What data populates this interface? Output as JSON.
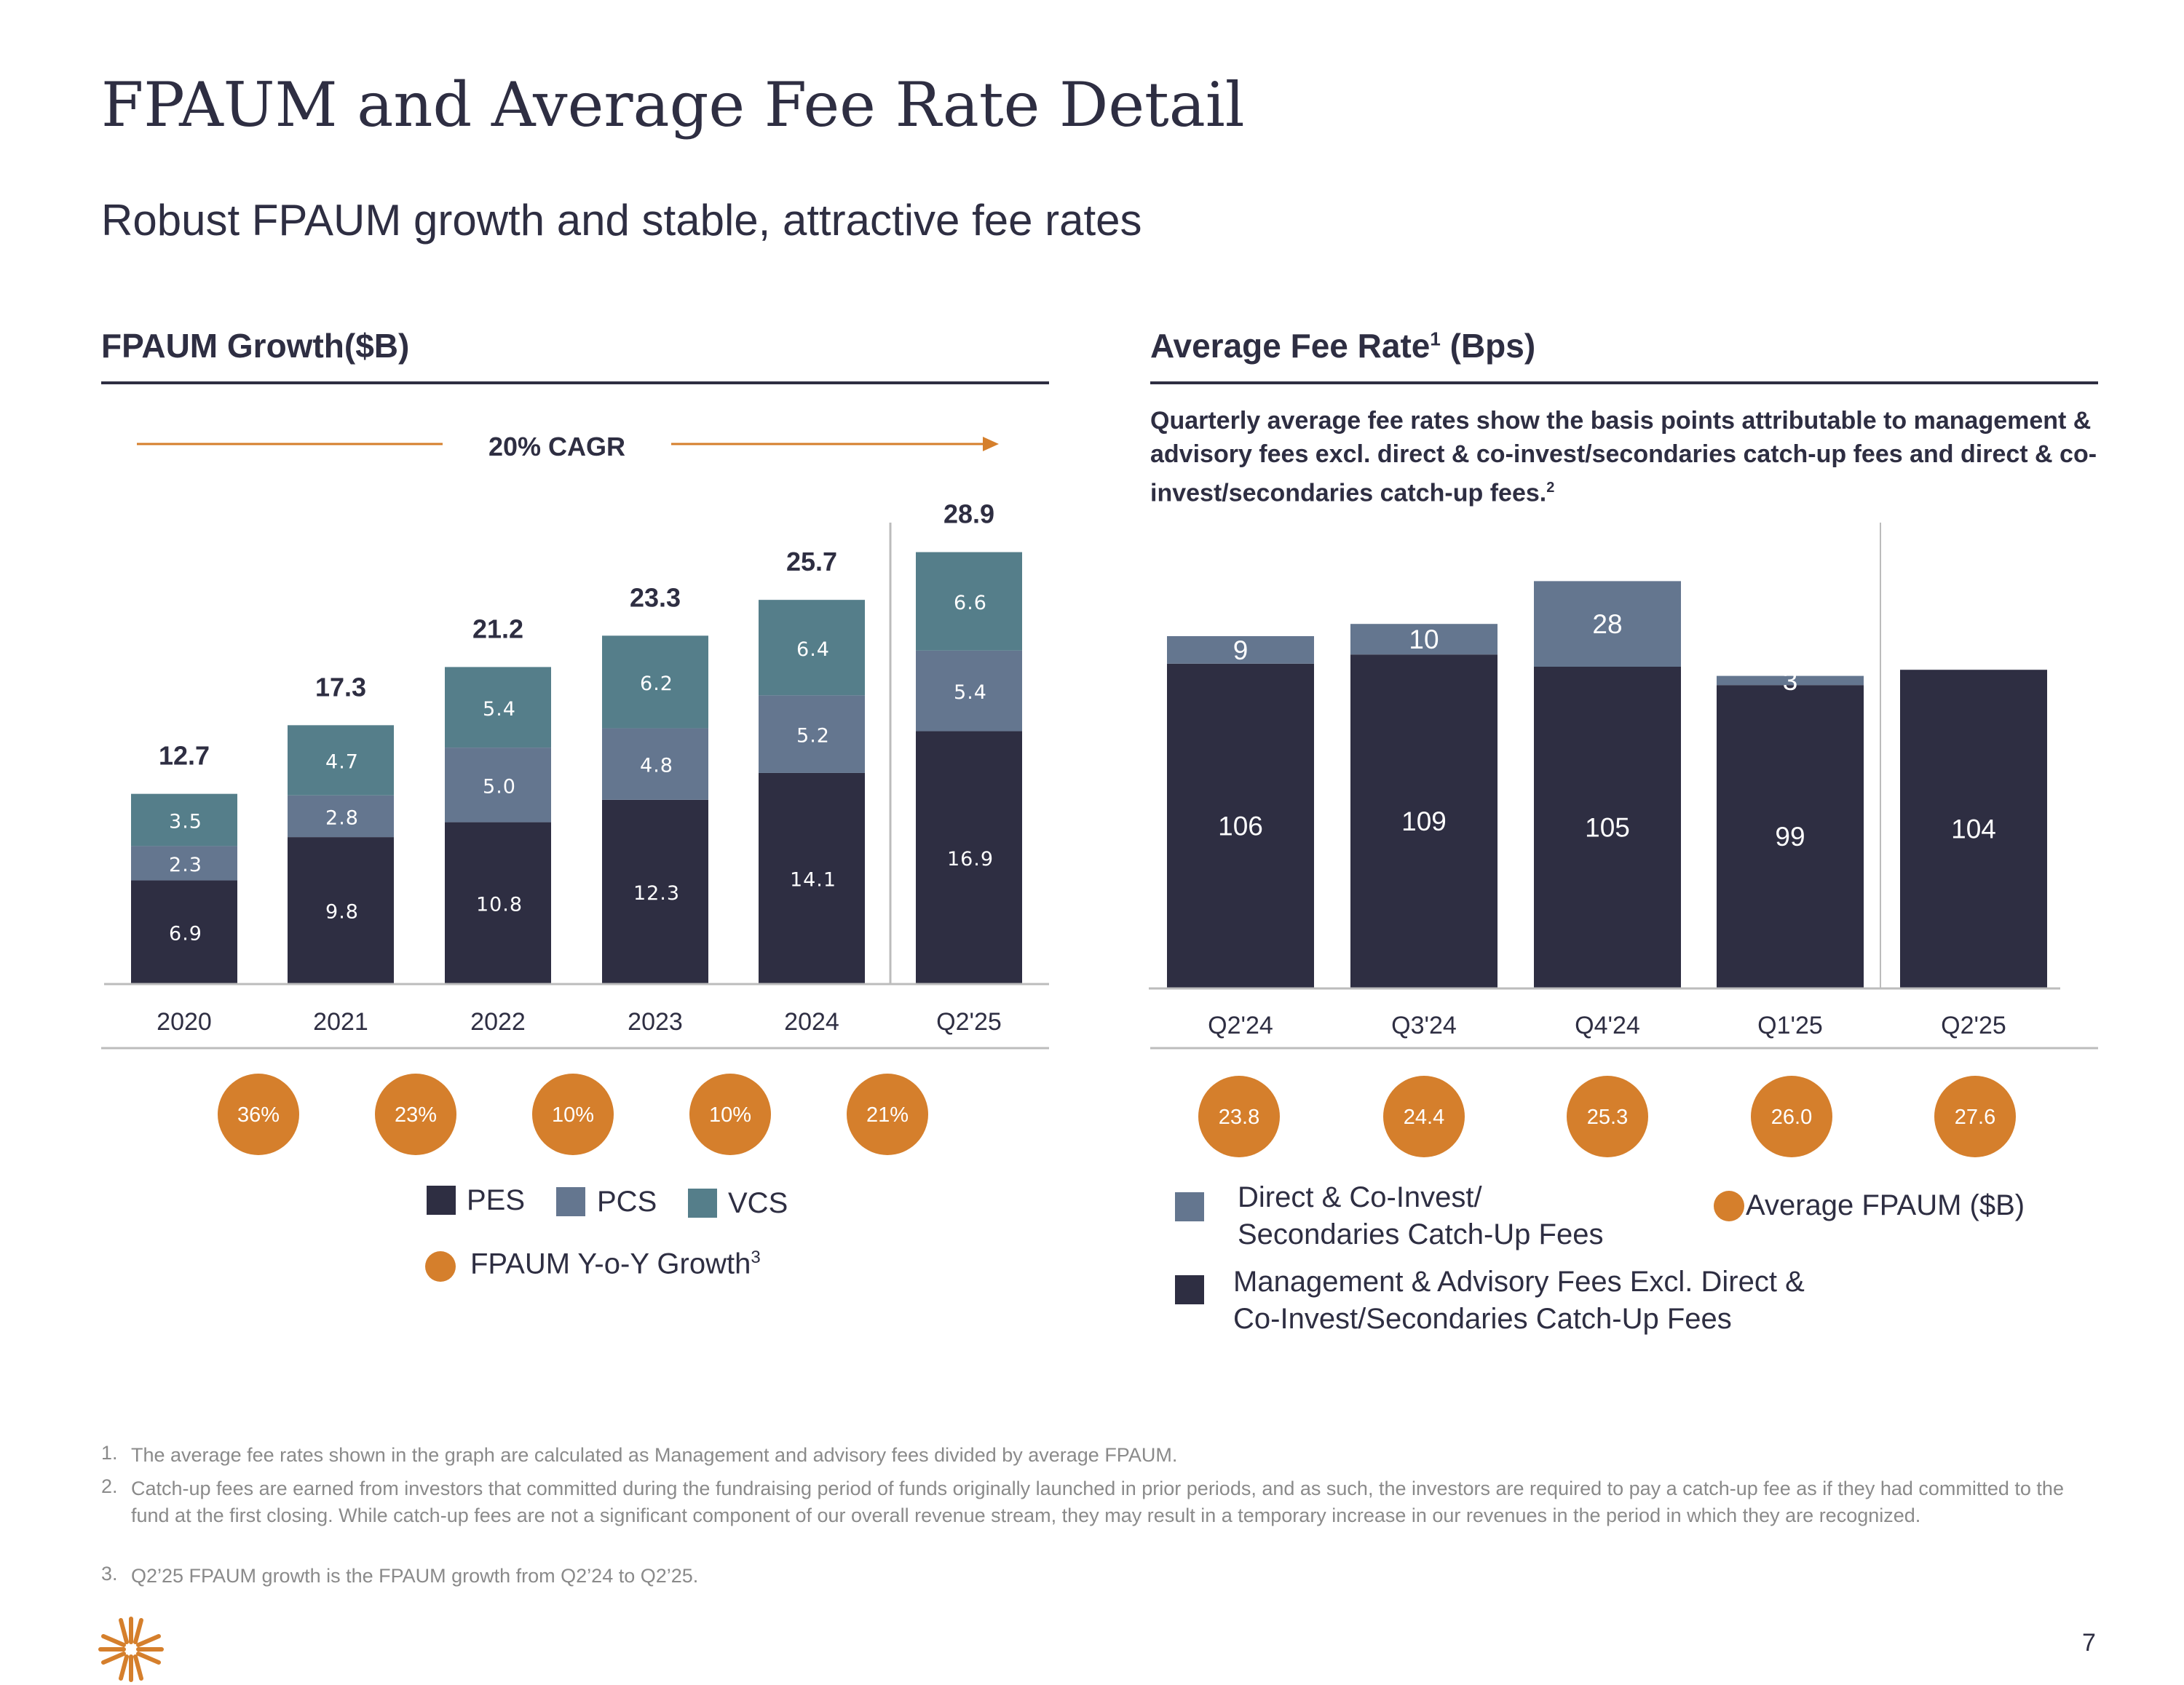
{
  "page": {
    "title": "FPAUM and Average Fee Rate Detail",
    "subtitle": "Robust FPAUM growth and stable, attractive fee rates",
    "page_number": "7"
  },
  "left_section": {
    "heading": "FPAUM Growth($B)",
    "cagr_label": "20% CAGR"
  },
  "right_section": {
    "heading": "Average Fee Rate",
    "heading_sup": "1",
    "heading_suffix": " (Bps)",
    "description": "Quarterly average fee rates show the basis points attributable to management & advisory fees excl. direct & co-invest/secondaries catch-up fees and direct & co-invest/secondaries catch-up fees.",
    "description_sup": "2"
  },
  "legend_left": {
    "pes": "PES",
    "pcs": "PCS",
    "vcs": "VCS",
    "growth": "FPAUM Y-o-Y Growth",
    "growth_sup": "3"
  },
  "legend_right": {
    "direct_line1": "Direct & Co-Invest/",
    "direct_line2": "Secondaries Catch-Up Fees",
    "mgmt_line1": "Management & Advisory Fees Excl. Direct &",
    "mgmt_line2": "Co-Invest/Secondaries Catch-Up Fees",
    "avg_fpaum": "Average FPAUM ($B)"
  },
  "footnotes": [
    {
      "num": "1.",
      "text": "The average fee rates shown in the graph are calculated as Management and advisory fees divided by average FPAUM."
    },
    {
      "num": "2.",
      "text": "Catch-up fees are earned from investors that committed during the fundraising period of funds originally launched in prior periods, and as such, the investors are required to pay a catch-up fee as if they had committed to the fund at the first closing. While catch-up fees are not a significant component of our overall revenue stream, they may result in a temporary increase in our revenues in the period in which they are recognized."
    },
    {
      "num": "3.",
      "text": "Q2’25 FPAUM growth is the FPAUM growth from Q2’24 to Q2’25."
    }
  ],
  "colors": {
    "pes": "#2e2e42",
    "pcs": "#64768f",
    "vcs": "#557e8a",
    "accent": "#d57f2c",
    "axis": "#bcbcbc"
  },
  "chart_data": [
    {
      "type": "bar",
      "stacked": true,
      "title": "FPAUM Growth($B)",
      "categories": [
        "2020",
        "2021",
        "2022",
        "2023",
        "2024",
        "Q2'25"
      ],
      "series": [
        {
          "name": "PES",
          "values": [
            6.9,
            9.8,
            10.8,
            12.3,
            14.1,
            16.9
          ],
          "labels": [
            "6.9",
            "9.8",
            "10.8",
            "12.3",
            "14.1",
            "16.9"
          ]
        },
        {
          "name": "PCS",
          "values": [
            2.3,
            2.8,
            5.0,
            4.8,
            5.2,
            5.4
          ],
          "labels": [
            "2.3",
            "2.8",
            "5.0",
            "4.8",
            "5.2",
            "5.4"
          ]
        },
        {
          "name": "VCS",
          "values": [
            3.5,
            4.7,
            5.4,
            6.2,
            6.4,
            6.6
          ],
          "labels": [
            "3.5",
            "4.7",
            "5.4",
            "6.2",
            "6.4",
            "6.6"
          ]
        }
      ],
      "totals": [
        12.7,
        17.3,
        21.2,
        23.3,
        25.7,
        28.9
      ],
      "total_labels": [
        "12.7",
        "17.3",
        "21.2",
        "23.3",
        "25.7",
        "28.9"
      ],
      "growth_labels": [
        "36%",
        "23%",
        "10%",
        "10%",
        "21%"
      ],
      "ylim": [
        0,
        33
      ]
    },
    {
      "type": "bar",
      "stacked": true,
      "title": "Average Fee Rate (Bps)",
      "categories": [
        "Q2'24",
        "Q3'24",
        "Q4'24",
        "Q1'25",
        "Q2'25"
      ],
      "series": [
        {
          "name": "Management & Advisory Fees Excl. Direct & Co-Invest/Secondaries Catch-Up Fees",
          "values": [
            106,
            109,
            105,
            99,
            104
          ],
          "labels": [
            "106",
            "109",
            "105",
            "99",
            "104"
          ]
        },
        {
          "name": "Direct & Co-Invest/ Secondaries Catch-Up Fees",
          "values": [
            9,
            10,
            28,
            3,
            0
          ],
          "labels": [
            "9",
            "10",
            "28",
            "3",
            ""
          ]
        }
      ],
      "avg_fpaum": [
        23.8,
        24.4,
        25.3,
        26.0,
        27.6
      ],
      "avg_fpaum_labels": [
        "23.8",
        "24.4",
        "25.3",
        "26.0",
        "27.6"
      ],
      "ylim": [
        0,
        150
      ]
    }
  ]
}
